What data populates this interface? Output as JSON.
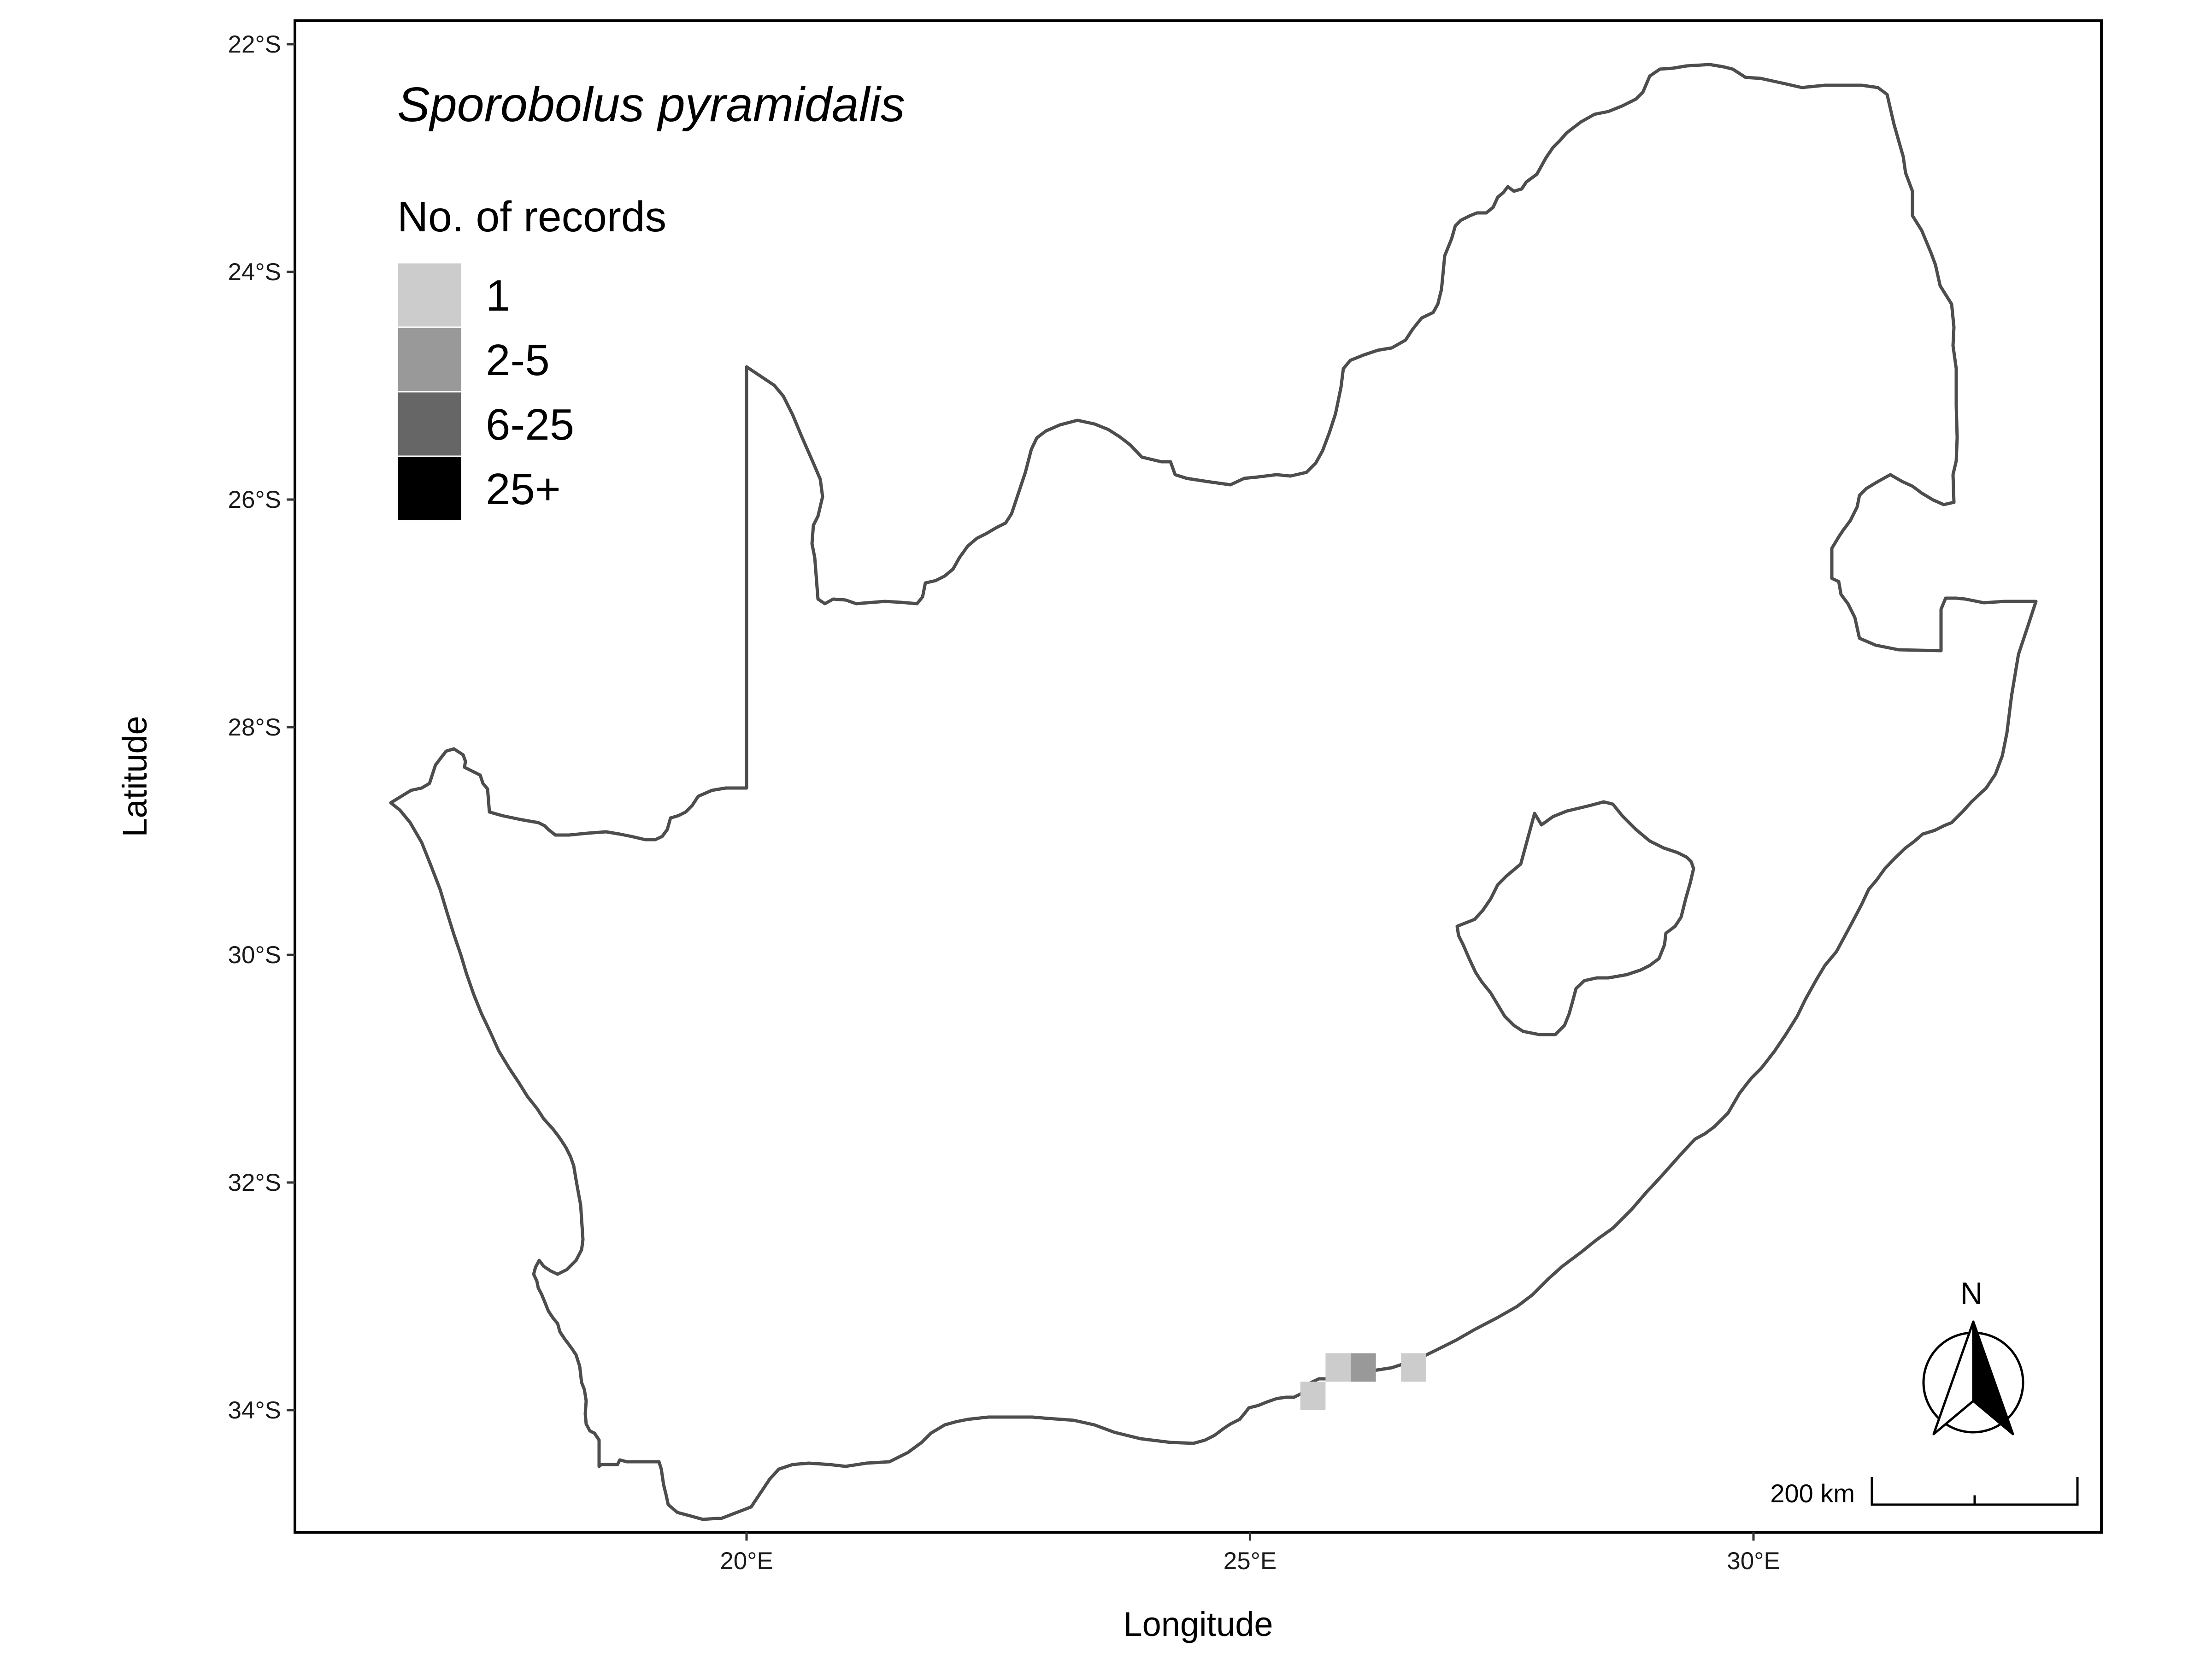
{
  "map": {
    "species": "Sporobolus pyramidalis",
    "xlabel": "Longitude",
    "ylabel": "Latitude",
    "xticks": [
      {
        "value": 20,
        "label": "20°E"
      },
      {
        "value": 25,
        "label": "25°E"
      },
      {
        "value": 30,
        "label": "30°E"
      }
    ],
    "yticks": [
      {
        "value": -22,
        "label": "22°S"
      },
      {
        "value": -24,
        "label": "24°S"
      },
      {
        "value": -26,
        "label": "26°S"
      },
      {
        "value": -28,
        "label": "28°S"
      },
      {
        "value": -30,
        "label": "30°S"
      },
      {
        "value": -32,
        "label": "32°S"
      },
      {
        "value": -34,
        "label": "34°S"
      }
    ],
    "legend": {
      "title": "No. of records",
      "items": [
        {
          "label": "1",
          "color": "#cccccc"
        },
        {
          "label": "2-5",
          "color": "#999999"
        },
        {
          "label": "6-25",
          "color": "#666666"
        },
        {
          "label": "25+",
          "color": "#000000"
        }
      ]
    },
    "records": [
      {
        "lon": 25.625,
        "lat": -33.875,
        "count": 1
      },
      {
        "lon": 25.875,
        "lat": -33.625,
        "count": 1
      },
      {
        "lon": 26.125,
        "lat": -33.625,
        "count": 2
      },
      {
        "lon": 26.625,
        "lat": -33.625,
        "count": 1
      }
    ],
    "scale_bar": {
      "label": "200 km"
    },
    "north_arrow": {
      "label": "N"
    },
    "colors": {
      "outline": "#4d4d4d",
      "frame": "#000000"
    }
  }
}
